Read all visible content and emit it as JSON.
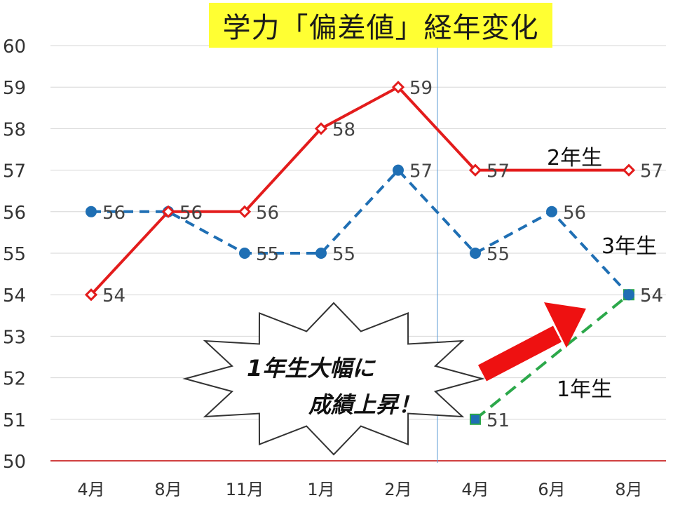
{
  "chart_data": {
    "type": "line",
    "title": "学力「偏差値」経年変化",
    "categories": [
      "4月",
      "8月",
      "11月",
      "1月",
      "2月",
      "4月",
      "6月",
      "8月"
    ],
    "ylim": [
      50,
      60
    ],
    "yticks": [
      "50",
      "51",
      "52",
      "53",
      "54",
      "55",
      "56",
      "57",
      "58",
      "59",
      "60"
    ],
    "grid": true,
    "series": [
      {
        "name": "2年生",
        "color": "#e31c1c",
        "style": "solid",
        "marker": "diamond",
        "values": [
          54,
          56,
          56,
          58,
          59,
          57,
          null,
          57
        ]
      },
      {
        "name": "3年生",
        "color": "#1f6fb4",
        "style": "dashed",
        "marker": "circle",
        "values": [
          56,
          56,
          55,
          55,
          57,
          55,
          56,
          54
        ]
      },
      {
        "name": "1年生",
        "color": "#2ca84a",
        "style": "dashed",
        "marker": "square",
        "values": [
          null,
          null,
          null,
          null,
          null,
          51,
          null,
          54
        ]
      }
    ],
    "annotations": {
      "callout_line1": "1年生大幅に",
      "callout_line2": "成績上昇！"
    }
  }
}
